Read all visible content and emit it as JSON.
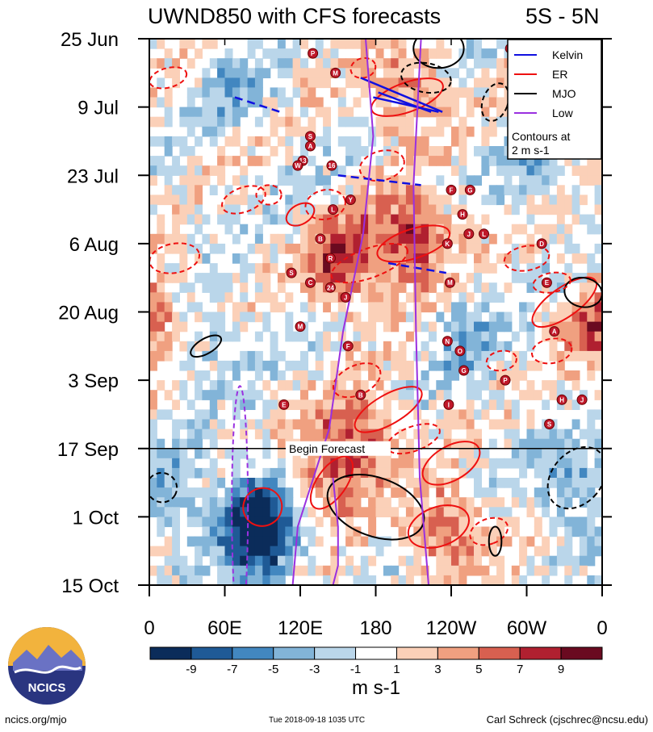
{
  "chart_data": {
    "type": "heatmap",
    "title": "UWND850 with CFS forecasts",
    "region": "5S - 5N",
    "x_axis": {
      "label": "",
      "ticks": [
        "0",
        "60E",
        "120E",
        "180",
        "120W",
        "60W",
        "0"
      ],
      "tick_values_deg_east": [
        0,
        60,
        120,
        180,
        240,
        300,
        360
      ],
      "range": [
        0,
        360
      ]
    },
    "y_axis": {
      "label": "",
      "ticks": [
        "25 Jun",
        "9 Jul",
        "23 Jul",
        "6 Aug",
        "20 Aug",
        "3 Sep",
        "17 Sep",
        "1 Oct",
        "15 Oct"
      ],
      "tick_values_day": [
        0,
        14,
        28,
        42,
        56,
        70,
        84,
        98,
        112
      ],
      "range_days": [
        0,
        112
      ],
      "direction": "time increases downward"
    },
    "forecast_start": {
      "label": "Begin Forecast",
      "day": 84
    },
    "colorbar": {
      "label": "m s-1",
      "tick_labels": [
        "-9",
        "-7",
        "-5",
        "-3",
        "-1",
        "1",
        "3",
        "5",
        "7",
        "9"
      ],
      "levels": [
        -9,
        -7,
        -5,
        -3,
        -1,
        1,
        3,
        5,
        7,
        9
      ],
      "colors": [
        "#0b2c5a",
        "#1f5a96",
        "#4287c0",
        "#82b4d8",
        "#bad6ea",
        "#ffffff",
        "#fbd0b8",
        "#f0a080",
        "#d86050",
        "#b02030",
        "#6a0a20"
      ]
    },
    "legend": {
      "placement": "top-right",
      "entries": [
        {
          "name": "Kelvin",
          "color": "#1010e0"
        },
        {
          "name": "ER",
          "color": "#ee1010"
        },
        {
          "name": "MJO",
          "color": "#000000"
        },
        {
          "name": "Low",
          "color": "#9a30e0"
        }
      ],
      "note_line1": "Contours at",
      "note_line2": "2 m s-1"
    },
    "anomaly_regions": [
      {
        "lon": 205,
        "day": 40,
        "value": 9
      },
      {
        "lon": 150,
        "day": 45,
        "value": 8
      },
      {
        "lon": 230,
        "day": 100,
        "value": 6
      },
      {
        "lon": 165,
        "day": 80,
        "value": 6
      },
      {
        "lon": 140,
        "day": 88,
        "value": 6
      },
      {
        "lon": 200,
        "day": 10,
        "value": 5
      },
      {
        "lon": 360,
        "day": 58,
        "value": 7
      },
      {
        "lon": 0,
        "day": 56,
        "value": 6
      },
      {
        "lon": 85,
        "day": 102,
        "value": -9
      },
      {
        "lon": 80,
        "day": 95,
        "value": -6
      },
      {
        "lon": 335,
        "day": 90,
        "value": -5
      },
      {
        "lon": 250,
        "day": 60,
        "value": -4
      },
      {
        "lon": 40,
        "day": 60,
        "value": -3
      },
      {
        "lon": 60,
        "day": 10,
        "value": -3
      },
      {
        "lon": 300,
        "day": 25,
        "value": -3
      },
      {
        "lon": 15,
        "day": 92,
        "value": -4
      }
    ],
    "kelvin_segments": [
      {
        "lon": [
          168,
          233
        ],
        "day": [
          8,
          15
        ]
      },
      {
        "lon": [
          182,
          224
        ],
        "day": [
          11,
          15
        ]
      },
      {
        "lon": [
          178,
          230
        ],
        "day": [
          12,
          15
        ]
      },
      {
        "lon": [
          150,
          216
        ],
        "day": [
          28,
          30
        ]
      },
      {
        "lon": [
          190,
          236
        ],
        "day": [
          46,
          48
        ]
      },
      {
        "lon": [
          68,
          104
        ],
        "day": [
          12,
          15
        ]
      }
    ],
    "low_freq_lines": [
      {
        "lon": [
          172,
          178,
          170,
          154,
          143,
          118,
          114
        ],
        "day": [
          0,
          20,
          40,
          60,
          80,
          100,
          112
        ]
      },
      {
        "lon": [
          216,
          210,
          212,
          215,
          222
        ],
        "day": [
          0,
          30,
          60,
          90,
          112
        ]
      },
      {
        "lon": [
          146,
          150,
          150,
          146
        ],
        "day": [
          90,
          100,
          108,
          112
        ]
      }
    ],
    "tropical_cyclone_labels": [
      "P",
      "M",
      "S",
      "A",
      "13",
      "W",
      "16",
      "Y",
      "L",
      "B",
      "R",
      "S",
      "C",
      "24",
      "J",
      "M",
      "F",
      "E",
      "B",
      "1",
      "E",
      "F",
      "G",
      "H",
      "K",
      "J",
      "L",
      "M",
      "N",
      "O",
      "G",
      "P",
      "I",
      "H",
      "J",
      "D",
      "E",
      "A",
      "S"
    ]
  },
  "footer": {
    "left": "ncics.org/mjo",
    "middle": "Tue 2018-09-18 1035 UTC",
    "right": "Carl Schreck (cjschrec@ncsu.edu)"
  },
  "logo": {
    "text": "NCICS"
  }
}
